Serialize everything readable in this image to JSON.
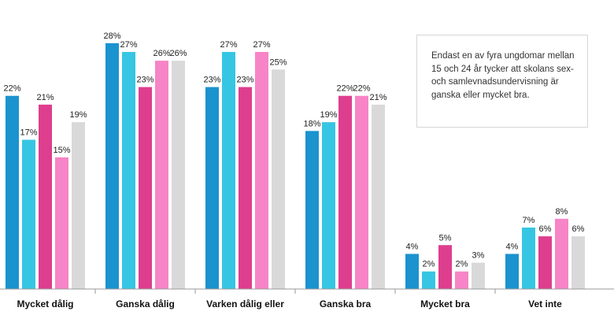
{
  "chart_data": {
    "type": "bar",
    "title": "",
    "xlabel": "",
    "ylabel": "",
    "ylim": [
      0,
      30
    ],
    "grid": false,
    "legend": "none",
    "categories": [
      "Mycket dålig",
      "Ganska dålig",
      "Varken dålig eller",
      "Ganska bra",
      "Mycket bra",
      "Vet inte"
    ],
    "series": [
      {
        "color": "#1a93cf",
        "values": [
          22,
          28,
          23,
          18,
          4,
          4
        ],
        "labels": [
          "22%",
          "28%",
          "23%",
          "18%",
          "4%",
          "4%"
        ]
      },
      {
        "color": "#36c6e3",
        "values": [
          17,
          27,
          27,
          19,
          2,
          7
        ],
        "labels": [
          "17%",
          "27%",
          "27%",
          "19%",
          "2%",
          "7%"
        ]
      },
      {
        "color": "#de3e8e",
        "values": [
          21,
          23,
          23,
          22,
          5,
          6
        ],
        "labels": [
          "21%",
          "23%",
          "23%",
          "22%",
          "5%",
          "6%"
        ]
      },
      {
        "color": "#f784c6",
        "values": [
          15,
          26,
          27,
          22,
          2,
          8
        ],
        "labels": [
          "15%",
          "26%",
          "27%",
          "22%",
          "2%",
          "8%"
        ]
      },
      {
        "color": "#d9d9d9",
        "values": [
          19,
          26,
          25,
          21,
          3,
          6
        ],
        "labels": [
          "19%",
          "26%",
          "25%",
          "21%",
          "3%",
          "6%"
        ]
      }
    ],
    "annotation": "Endast en av fyra ungdomar mellan 15 och 24 år tycker att skolans sex- och samlevnadsundervisning är ganska eller mycket bra."
  }
}
